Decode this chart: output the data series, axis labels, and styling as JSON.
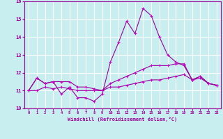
{
  "xlabel": "Windchill (Refroidissement éolien,°C)",
  "background_color": "#c8eef0",
  "grid_color": "#ffffff",
  "line_color": "#990099",
  "marker_color": "#cc00cc",
  "xmin": 0,
  "xmax": 23,
  "ymin": 10,
  "ymax": 16,
  "yticks": [
    10,
    11,
    12,
    13,
    14,
    15,
    16
  ],
  "xticks": [
    0,
    1,
    2,
    3,
    4,
    5,
    6,
    7,
    8,
    9,
    10,
    11,
    12,
    13,
    14,
    15,
    16,
    17,
    18,
    19,
    20,
    21,
    22,
    23
  ],
  "series": [
    [
      11.0,
      11.7,
      11.4,
      11.5,
      10.8,
      11.2,
      10.6,
      10.6,
      10.4,
      10.8,
      12.6,
      13.7,
      14.9,
      14.2,
      15.6,
      15.2,
      14.0,
      13.0,
      12.6,
      12.4,
      11.6,
      11.8,
      11.4,
      11.3
    ],
    [
      11.0,
      11.7,
      11.4,
      11.5,
      11.5,
      11.5,
      11.2,
      11.2,
      11.1,
      11.0,
      11.4,
      11.6,
      11.8,
      12.0,
      12.2,
      12.4,
      12.4,
      12.4,
      12.5,
      12.5,
      11.6,
      11.8,
      11.4,
      11.3
    ],
    [
      11.0,
      11.0,
      11.2,
      11.1,
      11.2,
      11.1,
      11.0,
      11.0,
      11.0,
      11.0,
      11.2,
      11.2,
      11.3,
      11.4,
      11.5,
      11.6,
      11.6,
      11.7,
      11.8,
      11.9,
      11.6,
      11.7,
      11.4,
      11.3
    ]
  ]
}
